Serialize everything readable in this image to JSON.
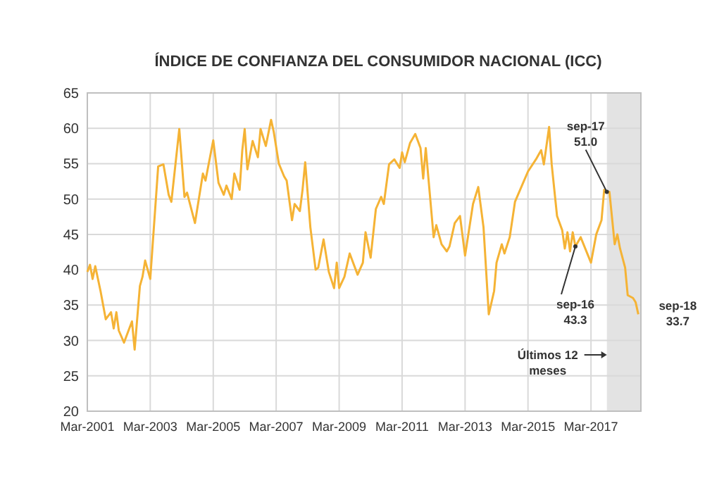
{
  "chart_data": {
    "type": "line",
    "title": "ÍNDICE DE CONFIANZA DEL CONSUMIDOR NACIONAL (ICC)",
    "x": [
      "2001-03",
      "2001-04",
      "2001-05",
      "2001-06",
      "2001-08",
      "2001-10",
      "2001-12",
      "2002-01",
      "2002-02",
      "2002-03",
      "2002-05",
      "2002-07",
      "2002-08",
      "2002-09",
      "2002-11",
      "2002-12",
      "2003-01",
      "2003-03",
      "2003-06",
      "2003-08",
      "2003-10",
      "2003-11",
      "2004-02",
      "2004-04",
      "2004-05",
      "2004-08",
      "2004-11",
      "2004-12",
      "2005-03",
      "2005-05",
      "2005-07",
      "2005-08",
      "2005-10",
      "2005-11",
      "2006-01",
      "2006-02",
      "2006-03",
      "2006-04",
      "2006-06",
      "2006-08",
      "2006-09",
      "2006-11",
      "2007-01",
      "2007-02",
      "2007-04",
      "2007-06",
      "2007-07",
      "2007-09",
      "2007-10",
      "2007-12",
      "2008-01",
      "2008-02",
      "2008-04",
      "2008-06",
      "2008-07",
      "2008-09",
      "2008-11",
      "2009-01",
      "2009-02",
      "2009-03",
      "2009-05",
      "2009-07",
      "2009-10",
      "2009-12",
      "2010-01",
      "2010-03",
      "2010-05",
      "2010-07",
      "2010-08",
      "2010-10",
      "2010-12",
      "2011-02",
      "2011-03",
      "2011-04",
      "2011-06",
      "2011-08",
      "2011-10",
      "2011-11",
      "2011-12",
      "2012-01",
      "2012-03",
      "2012-04",
      "2012-06",
      "2012-08",
      "2012-09",
      "2012-11",
      "2013-01",
      "2013-03",
      "2013-06",
      "2013-08",
      "2013-10",
      "2013-12",
      "2014-02",
      "2014-03",
      "2014-05",
      "2014-06",
      "2014-08",
      "2014-10",
      "2015-03",
      "2015-06",
      "2015-08",
      "2015-09",
      "2015-11",
      "2015-12",
      "2016-02",
      "2016-04",
      "2016-05",
      "2016-06",
      "2016-07",
      "2016-08",
      "2016-09",
      "2016-11",
      "2017-03",
      "2017-05",
      "2017-07",
      "2017-08",
      "2017-09",
      "2017-10",
      "2017-12",
      "2018-01",
      "2018-02",
      "2018-04",
      "2018-05",
      "2018-07",
      "2018-08",
      "2018-09"
    ],
    "series": [
      {
        "color": "#f5b335",
        "values": [
          39.7,
          40.7,
          38.7,
          40.5,
          37,
          33,
          34,
          31.7,
          34,
          31.4,
          29.7,
          31.7,
          32.7,
          28.7,
          37.7,
          39,
          41.3,
          38.7,
          54.6,
          54.9,
          50.6,
          49.6,
          59.9,
          50.3,
          50.9,
          46.6,
          53.6,
          52.6,
          58.3,
          52.3,
          50.6,
          51.9,
          50,
          53.6,
          51.3,
          56.9,
          59.9,
          54.2,
          58.2,
          55.9,
          59.9,
          57.5,
          61.2,
          59.5,
          55.0,
          53.2,
          52.6,
          47,
          49.3,
          48.3,
          51.3,
          55.2,
          46,
          40,
          40.3,
          44.3,
          39.7,
          37.4,
          41,
          37.4,
          39,
          42.3,
          39.3,
          41,
          45.3,
          41.7,
          48.6,
          50.3,
          49.3,
          54.9,
          55.6,
          54.4,
          56.6,
          55.2,
          57.9,
          59.2,
          57.2,
          52.9,
          57.2,
          52.9,
          44.6,
          46.3,
          43.6,
          42.6,
          43.3,
          46.6,
          47.6,
          42,
          49.3,
          51.7,
          46,
          33.7,
          37,
          41,
          43.6,
          42.3,
          44.6,
          49.6,
          53.9,
          55.6,
          56.9,
          54.9,
          60.2,
          54.9,
          47.6,
          45.6,
          43,
          45.3,
          42.6,
          45.3,
          43.3,
          44.6,
          41,
          45,
          47,
          51.3,
          51,
          51,
          43.6,
          45,
          43,
          40.3,
          36.4,
          36,
          35.4,
          33.7
        ]
      }
    ],
    "xlim": [
      "2001-03",
      "2018-10"
    ],
    "xticks": [
      {
        "value": "2001-03",
        "label": "Mar-2001"
      },
      {
        "value": "2003-03",
        "label": "Mar-2003"
      },
      {
        "value": "2005-03",
        "label": "Mar-2005"
      },
      {
        "value": "2007-03",
        "label": "Mar-2007"
      },
      {
        "value": "2009-03",
        "label": "Mar-2009"
      },
      {
        "value": "2011-03",
        "label": "Mar-2011"
      },
      {
        "value": "2013-03",
        "label": "Mar-2013"
      },
      {
        "value": "2015-03",
        "label": "Mar-2015"
      },
      {
        "value": "2017-03",
        "label": "Mar-2017"
      }
    ],
    "ylim": [
      20,
      65
    ],
    "yticks": [
      20,
      25,
      30,
      35,
      40,
      45,
      50,
      55,
      60,
      65
    ],
    "grid": true,
    "marker": "none",
    "line_style": "solid",
    "bands": [
      {
        "axis": "x",
        "from": "2017-09",
        "to": "2018-10",
        "label": "Últimos 12 meses",
        "color": "#e3e3e3"
      }
    ],
    "annotations": [
      {
        "text": "sep-16\n43.3",
        "x": "2016-09",
        "y": 43.3
      },
      {
        "text": "sep-17\n51.0",
        "x": "2017-09",
        "y": 51.0
      },
      {
        "text": "sep-18\n33.7",
        "x": "2018-09",
        "y": 33.7
      }
    ]
  }
}
